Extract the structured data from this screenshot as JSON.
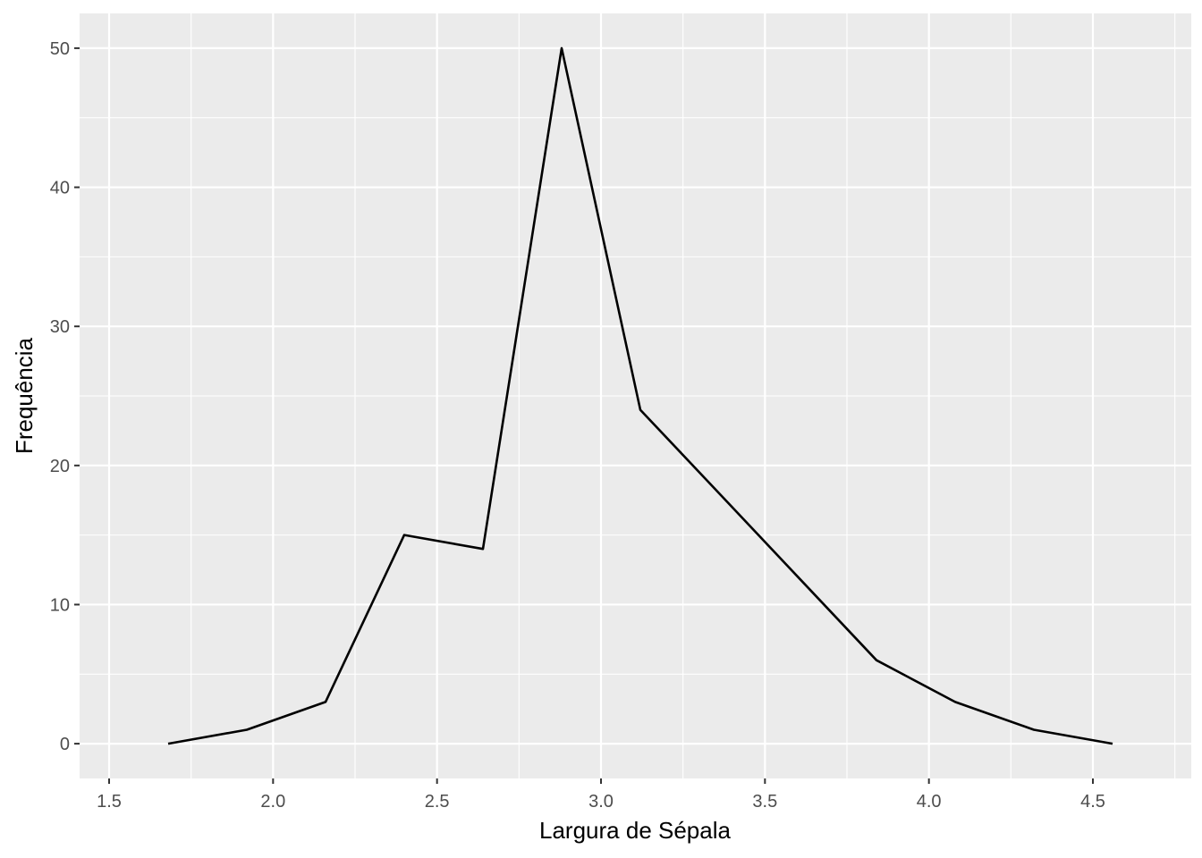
{
  "chart_data": {
    "type": "line",
    "title": "",
    "xlabel": "Largura de Sépala",
    "ylabel": "Frequência",
    "x": [
      1.68,
      1.92,
      2.16,
      2.4,
      2.64,
      2.88,
      3.12,
      3.36,
      3.6,
      3.84,
      4.08,
      4.32,
      4.56
    ],
    "series": [
      {
        "values": [
          0,
          1,
          3,
          15,
          14,
          50,
          24,
          18,
          12,
          6,
          3,
          1,
          0
        ]
      }
    ],
    "xlim": [
      1.41,
      4.8
    ],
    "ylim": [
      -2.5,
      52.5
    ],
    "x_ticks": [
      1.5,
      2.0,
      2.5,
      3.0,
      3.5,
      4.0,
      4.5
    ],
    "x_tick_labels": [
      "1.5",
      "2.0",
      "2.5",
      "3.0",
      "3.5",
      "4.0",
      "4.5"
    ],
    "y_ticks": [
      0,
      10,
      20,
      30,
      40,
      50
    ],
    "y_tick_labels": [
      "0",
      "10",
      "20",
      "30",
      "40",
      "50"
    ],
    "grid": true,
    "colors": {
      "panel": "#ebebeb",
      "grid": "#ffffff",
      "line": "#000000",
      "tick_text": "#4d4d4d",
      "tick_mark": "#333333"
    }
  }
}
